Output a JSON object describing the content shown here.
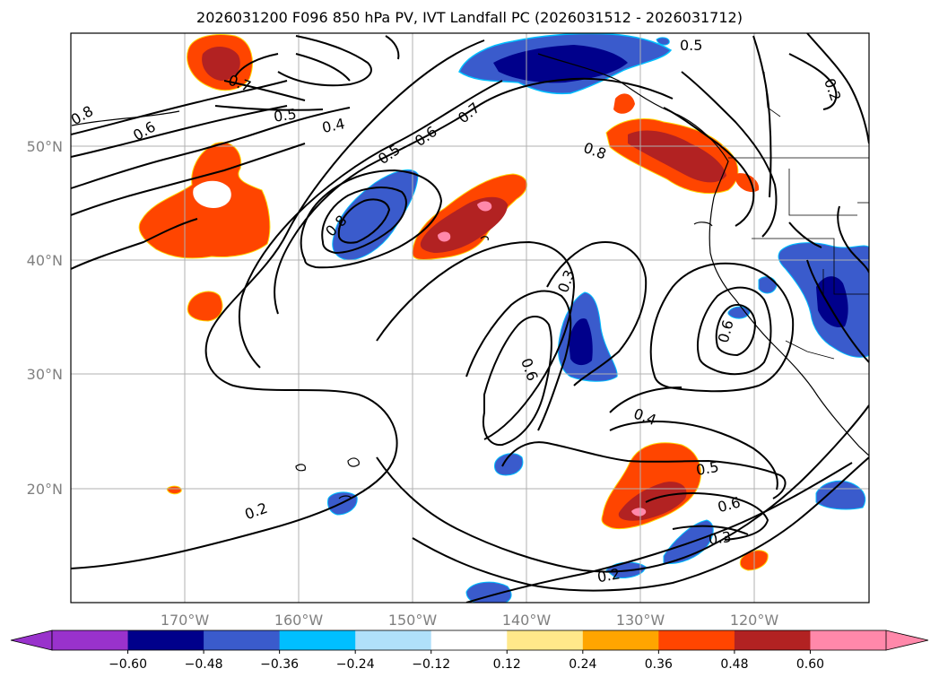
{
  "title": "2026031200 F096 850 hPa PV, IVT Landfall PC (2026031512 - 2026031712)",
  "axes": {
    "lon_ticks": [
      "170°W",
      "160°W",
      "150°W",
      "140°W",
      "130°W",
      "120°W"
    ],
    "lat_ticks": [
      "50°N",
      "40°N",
      "30°N",
      "20°N"
    ]
  },
  "contour_labels": [
    "0.2",
    "0.3",
    "0.4",
    "0.5",
    "0.6",
    "0.7",
    "0.8"
  ],
  "colorbar": {
    "tick_labels": [
      "−0.60",
      "−0.48",
      "−0.36",
      "−0.24",
      "−0.12",
      "0.12",
      "0.24",
      "0.36",
      "0.48",
      "0.60"
    ],
    "colors": [
      "#9932cc",
      "#00008b",
      "#3a5bcc",
      "#00bfff",
      "#b0e0fa",
      "#ffffff",
      "#ffe88a",
      "#ffa500",
      "#ff4500",
      "#b22222",
      "#ff88aa"
    ]
  },
  "colors": {
    "orange_red": "#ff4500",
    "dark_red": "#b22222",
    "pink": "#ff88aa",
    "yellow": "#ffd700",
    "royal_blue": "#3a5bcc",
    "navy": "#00008b",
    "sky": "#00bfff",
    "contour": "#000000",
    "grid": "#b0b0b0"
  }
}
